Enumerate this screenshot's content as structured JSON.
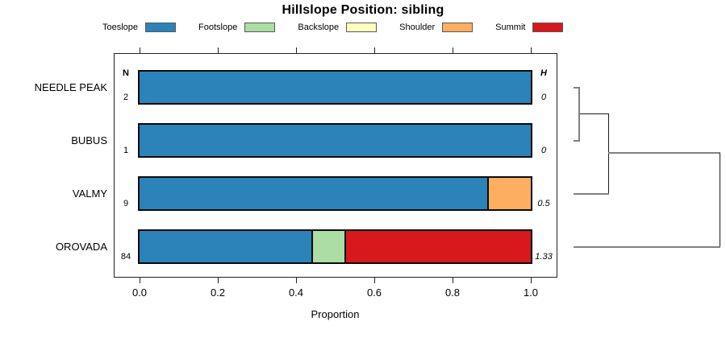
{
  "title": "Hillslope Position: sibling",
  "legend": {
    "items": [
      {
        "label": "Toeslope",
        "color": "#2B83BA"
      },
      {
        "label": "Footslope",
        "color": "#ABDDA4"
      },
      {
        "label": "Backslope",
        "color": "#FFFFBF"
      },
      {
        "label": "Shoulder",
        "color": "#FDAE61"
      },
      {
        "label": "Summit",
        "color": "#D7191C"
      }
    ]
  },
  "columns": {
    "n_header": "N",
    "h_header": "H"
  },
  "axis": {
    "label": "Proportion",
    "ticks": [
      "0.0",
      "0.2",
      "0.4",
      "0.6",
      "0.8",
      "1.0"
    ],
    "tick_values": [
      0,
      0.2,
      0.4,
      0.6,
      0.8,
      1.0
    ]
  },
  "rows": [
    {
      "name": "NEEDLE PEAK",
      "n": "2",
      "h": "0",
      "segments": [
        {
          "class": "Toeslope",
          "proportion": 1.0
        }
      ]
    },
    {
      "name": "BUBUS",
      "n": "1",
      "h": "0",
      "segments": [
        {
          "class": "Toeslope",
          "proportion": 1.0
        }
      ]
    },
    {
      "name": "VALMY",
      "n": "9",
      "h": "0.5",
      "segments": [
        {
          "class": "Toeslope",
          "proportion": 0.889
        },
        {
          "class": "Shoulder",
          "proportion": 0.111
        }
      ]
    },
    {
      "name": "OROVADA",
      "n": "84",
      "h": "1.33",
      "segments": [
        {
          "class": "Toeslope",
          "proportion": 0.44
        },
        {
          "class": "Footslope",
          "proportion": 0.084
        },
        {
          "class": "Summit",
          "proportion": 0.476
        }
      ]
    }
  ],
  "chart_data": {
    "type": "bar",
    "subtype": "horizontal_stacked_proportion",
    "title": "Hillslope Position: sibling",
    "xlabel": "Proportion",
    "xlim": [
      0,
      1
    ],
    "xticks": [
      0.0,
      0.2,
      0.4,
      0.6,
      0.8,
      1.0
    ],
    "grid": false,
    "legend_position": "top",
    "categories": [
      "NEEDLE PEAK",
      "BUBUS",
      "VALMY",
      "OROVADA"
    ],
    "sample_sizes": [
      2,
      1,
      9,
      84
    ],
    "shannon_entropy": [
      0,
      0,
      0.5,
      1.33
    ],
    "series": [
      {
        "name": "Toeslope",
        "color": "#2B83BA",
        "values": [
          1.0,
          1.0,
          0.889,
          0.44
        ]
      },
      {
        "name": "Footslope",
        "color": "#ABDDA4",
        "values": [
          0,
          0,
          0,
          0.084
        ]
      },
      {
        "name": "Backslope",
        "color": "#FFFFBF",
        "values": [
          0,
          0,
          0,
          0
        ]
      },
      {
        "name": "Shoulder",
        "color": "#FDAE61",
        "values": [
          0,
          0,
          0.111,
          0
        ]
      },
      {
        "name": "Summit",
        "color": "#D7191C",
        "values": [
          0,
          0,
          0,
          0.476
        ]
      }
    ],
    "dendrogram": {
      "leaves_top_to_bottom": [
        "NEEDLE PEAK",
        "BUBUS",
        "VALMY",
        "OROVADA"
      ],
      "merges": [
        {
          "members": [
            "NEEDLE PEAK",
            "BUBUS"
          ],
          "relative_height": 0.04
        },
        {
          "members": [
            "NEEDLE PEAK",
            "BUBUS",
            "VALMY"
          ],
          "relative_height": 0.24
        },
        {
          "members": [
            "NEEDLE PEAK",
            "BUBUS",
            "VALMY",
            "OROVADA"
          ],
          "relative_height": 1.0
        }
      ]
    }
  }
}
